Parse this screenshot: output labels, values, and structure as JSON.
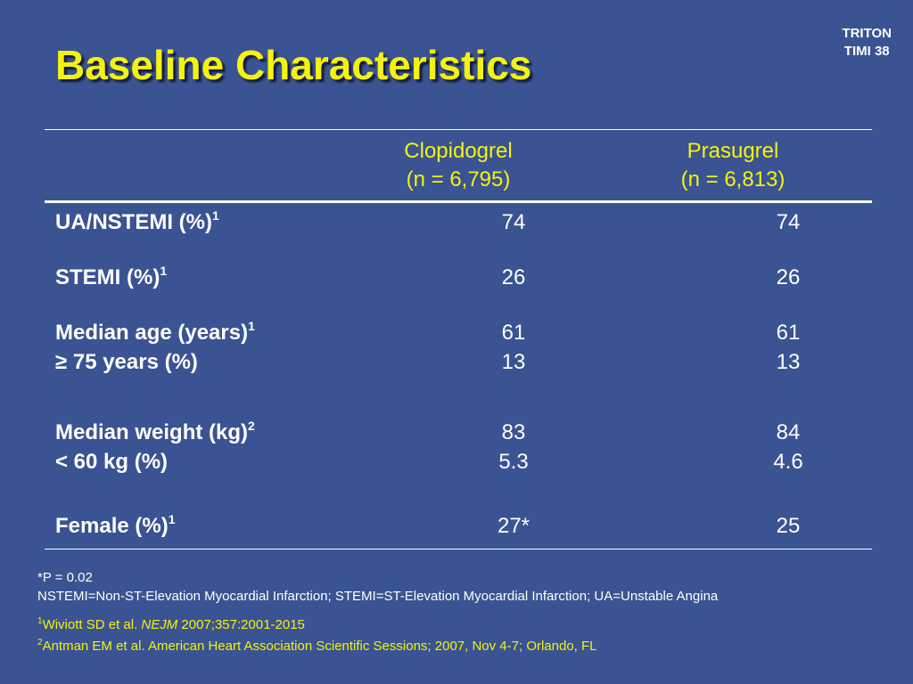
{
  "title": "Baseline Characteristics",
  "badge": {
    "line1": "TRITON",
    "line2": "TIMI 38"
  },
  "columns": [
    {
      "name": "Clopidogrel",
      "n": "(n = 6,795)"
    },
    {
      "name": "Prasugrel",
      "n": "(n = 6,813)"
    }
  ],
  "rows": {
    "ua_nstemi": {
      "label": "UA/NSTEMI (%)",
      "sup": "1",
      "clopidogrel": "74",
      "prasugrel": "74"
    },
    "stemi": {
      "label": "STEMI (%)",
      "sup": "1",
      "clopidogrel": "26",
      "prasugrel": "26"
    },
    "median_age": {
      "label": "Median age (years)",
      "sup": "1",
      "clopidogrel": "61",
      "prasugrel": "61"
    },
    "age_75": {
      "label": "≥ 75 years (%)",
      "clopidogrel": "13",
      "prasugrel": "13"
    },
    "median_weight": {
      "label": "Median weight (kg)",
      "sup": "2",
      "clopidogrel": "83",
      "prasugrel": "84"
    },
    "weight_60": {
      "label": "< 60 kg (%)",
      "clopidogrel": "5.3",
      "prasugrel": "4.6"
    },
    "female": {
      "label": "Female (%)",
      "sup": "1",
      "clopidogrel": "27*",
      "prasugrel": "25"
    }
  },
  "footnotes": {
    "p_value": "*P = 0.02",
    "abbreviations": "NSTEMI=Non-ST-Elevation Myocardial Infarction; STEMI=ST-Elevation Myocardial Infarction; UA=Unstable Angina"
  },
  "references": [
    {
      "num": "1",
      "authors": "Wiviott SD et al. ",
      "journal": "NEJM",
      "detail": " 2007;357:2001-2015"
    },
    {
      "num": "2",
      "text": "Antman EM et al. American Heart Association Scientific Sessions; 2007, Nov 4-7; Orlando, FL"
    }
  ],
  "colors": {
    "background": "#3a5392",
    "accent": "#f5f20f",
    "text": "#ffffff"
  }
}
